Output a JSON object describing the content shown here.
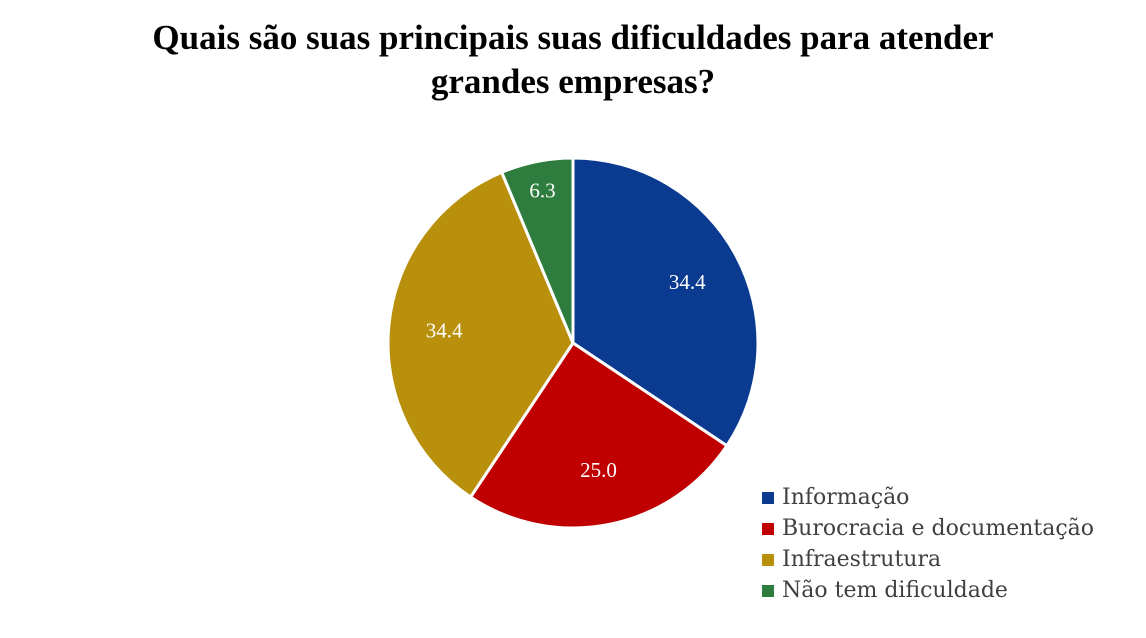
{
  "chart_data": {
    "type": "pie",
    "title_lines": [
      "Quais são suas principais suas dificuldades para atender",
      "grandes empresas?"
    ],
    "slices": [
      {
        "label": "Informação",
        "value": 34.4,
        "display": "34.4",
        "color": "#0B3B91"
      },
      {
        "label": "Burocracia e documentação",
        "value": 25.0,
        "display": "25.0",
        "color": "#C00000"
      },
      {
        "label": "Infraestrutura",
        "value": 34.4,
        "display": "34.4",
        "color": "#B8900B"
      },
      {
        "label": "Não tem dificuldade",
        "value": 6.3,
        "display": "6.3",
        "color": "#2E7D3E"
      }
    ],
    "start": "12 o'clock",
    "direction": "clockwise",
    "legend_position": "bottom-right"
  }
}
